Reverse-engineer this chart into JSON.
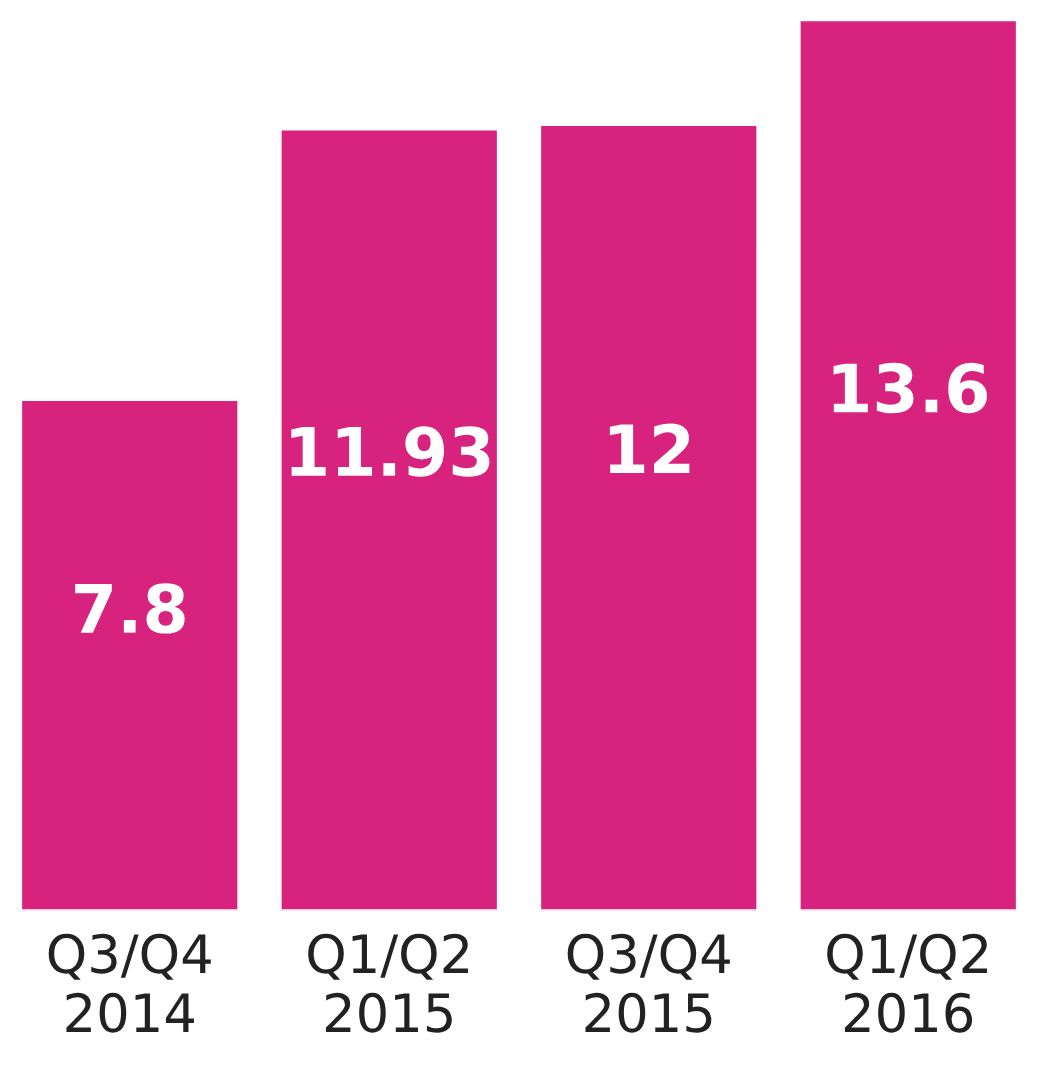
{
  "chart_data": {
    "type": "bar",
    "categories": [
      "Q3/Q4\n2014",
      "Q1/Q2\n2015",
      "Q3/Q4\n2015",
      "Q1/Q2\n2016"
    ],
    "values": [
      7.8,
      11.93,
      12,
      13.6
    ],
    "color": "#d8237e",
    "data_labels": true,
    "grid": false,
    "legend": false
  }
}
